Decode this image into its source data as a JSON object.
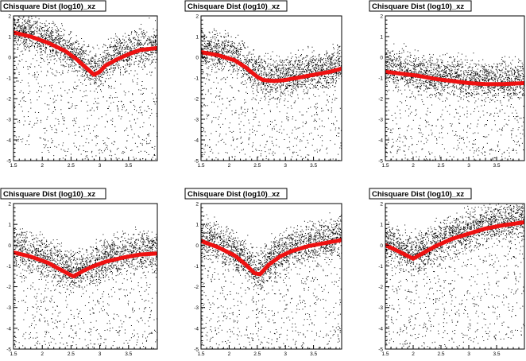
{
  "chart_data": [
    {
      "type": "scatter",
      "title": "Chisquare Dist (log10)_xz",
      "xlim": [
        1.5,
        4.0
      ],
      "ylim": [
        -5,
        2
      ],
      "x_ticks": [
        1.5,
        2,
        2.5,
        3,
        3.5
      ],
      "y_ticks": [
        2,
        1,
        0,
        -1,
        -2,
        -3,
        -4,
        -5
      ],
      "grid": false,
      "trend_color": "#ee1111",
      "mean_curve": {
        "x": [
          1.5,
          1.8,
          2.1,
          2.4,
          2.6,
          2.8,
          2.9,
          3.0,
          3.1,
          3.3,
          3.5,
          3.7,
          4.0
        ],
        "y": [
          1.2,
          1.0,
          0.7,
          0.3,
          -0.1,
          -0.6,
          -0.85,
          -0.7,
          -0.4,
          -0.1,
          0.15,
          0.35,
          0.45
        ]
      }
    },
    {
      "type": "scatter",
      "title": "Chisquare Dist (log10)_xz",
      "xlim": [
        1.5,
        4.0
      ],
      "ylim": [
        -5,
        2
      ],
      "x_ticks": [
        1.5,
        2,
        2.5,
        3,
        3.5
      ],
      "y_ticks": [
        2,
        1,
        0,
        -1,
        -2,
        -3,
        -4,
        -5
      ],
      "grid": false,
      "trend_color": "#ee1111",
      "mean_curve": {
        "x": [
          1.5,
          1.8,
          2.1,
          2.3,
          2.5,
          2.6,
          2.8,
          3.0,
          3.2,
          3.5,
          3.8,
          4.0
        ],
        "y": [
          0.25,
          0.1,
          -0.15,
          -0.5,
          -0.95,
          -1.1,
          -1.15,
          -1.1,
          -1.0,
          -0.85,
          -0.7,
          -0.55
        ]
      }
    },
    {
      "type": "scatter",
      "title": "Chisquare Dist (log10)_xz",
      "xlim": [
        1.5,
        4.0
      ],
      "ylim": [
        -5,
        2
      ],
      "x_ticks": [
        1.5,
        2,
        2.5,
        3,
        3.5
      ],
      "y_ticks": [
        2,
        1,
        0,
        -1,
        -2,
        -3,
        -4,
        -5
      ],
      "grid": false,
      "trend_color": "#ee1111",
      "mean_curve": {
        "x": [
          1.5,
          1.8,
          2.1,
          2.4,
          2.7,
          3.0,
          3.3,
          3.6,
          4.0
        ],
        "y": [
          -0.7,
          -0.8,
          -0.9,
          -1.05,
          -1.15,
          -1.25,
          -1.3,
          -1.3,
          -1.25
        ]
      }
    },
    {
      "type": "scatter",
      "title": "Chisquare Dist (log10)_xz",
      "xlim": [
        1.5,
        4.0
      ],
      "ylim": [
        -5,
        2
      ],
      "x_ticks": [
        1.5,
        2,
        2.5,
        3,
        3.5
      ],
      "y_ticks": [
        2,
        1,
        0,
        -1,
        -2,
        -3,
        -4,
        -5
      ],
      "grid": false,
      "trend_color": "#ee1111",
      "mean_curve": {
        "x": [
          1.5,
          1.8,
          2.1,
          2.3,
          2.5,
          2.55,
          2.7,
          2.9,
          3.1,
          3.4,
          3.7,
          4.0
        ],
        "y": [
          -0.35,
          -0.55,
          -0.85,
          -1.15,
          -1.45,
          -1.5,
          -1.25,
          -1.0,
          -0.8,
          -0.6,
          -0.45,
          -0.4
        ]
      }
    },
    {
      "type": "scatter",
      "title": "Chisquare Dist (log10)_xz",
      "xlim": [
        1.5,
        4.0
      ],
      "ylim": [
        -5,
        2
      ],
      "x_ticks": [
        1.5,
        2,
        2.5,
        3,
        3.5
      ],
      "y_ticks": [
        2,
        1,
        0,
        -1,
        -2,
        -3,
        -4,
        -5
      ],
      "grid": false,
      "trend_color": "#ee1111",
      "mean_curve": {
        "x": [
          1.5,
          1.8,
          2.1,
          2.3,
          2.45,
          2.55,
          2.7,
          2.9,
          3.1,
          3.4,
          3.7,
          4.0
        ],
        "y": [
          0.2,
          -0.1,
          -0.5,
          -0.95,
          -1.35,
          -1.4,
          -0.95,
          -0.55,
          -0.3,
          -0.05,
          0.1,
          0.25
        ]
      }
    },
    {
      "type": "scatter",
      "title": "Chisquare Dist (log10)_xz",
      "xlim": [
        1.5,
        4.0
      ],
      "ylim": [
        -5,
        2
      ],
      "x_ticks": [
        1.5,
        2,
        2.5,
        3,
        3.5
      ],
      "y_ticks": [
        2,
        1,
        0,
        -1,
        -2,
        -3,
        -4,
        -5
      ],
      "grid": false,
      "trend_color": "#ee1111",
      "mean_curve": {
        "x": [
          1.5,
          1.7,
          1.85,
          2.0,
          2.2,
          2.4,
          2.7,
          3.0,
          3.3,
          3.6,
          4.0
        ],
        "y": [
          0.0,
          -0.25,
          -0.45,
          -0.65,
          -0.35,
          -0.05,
          0.3,
          0.55,
          0.8,
          0.95,
          1.1
        ]
      }
    }
  ]
}
